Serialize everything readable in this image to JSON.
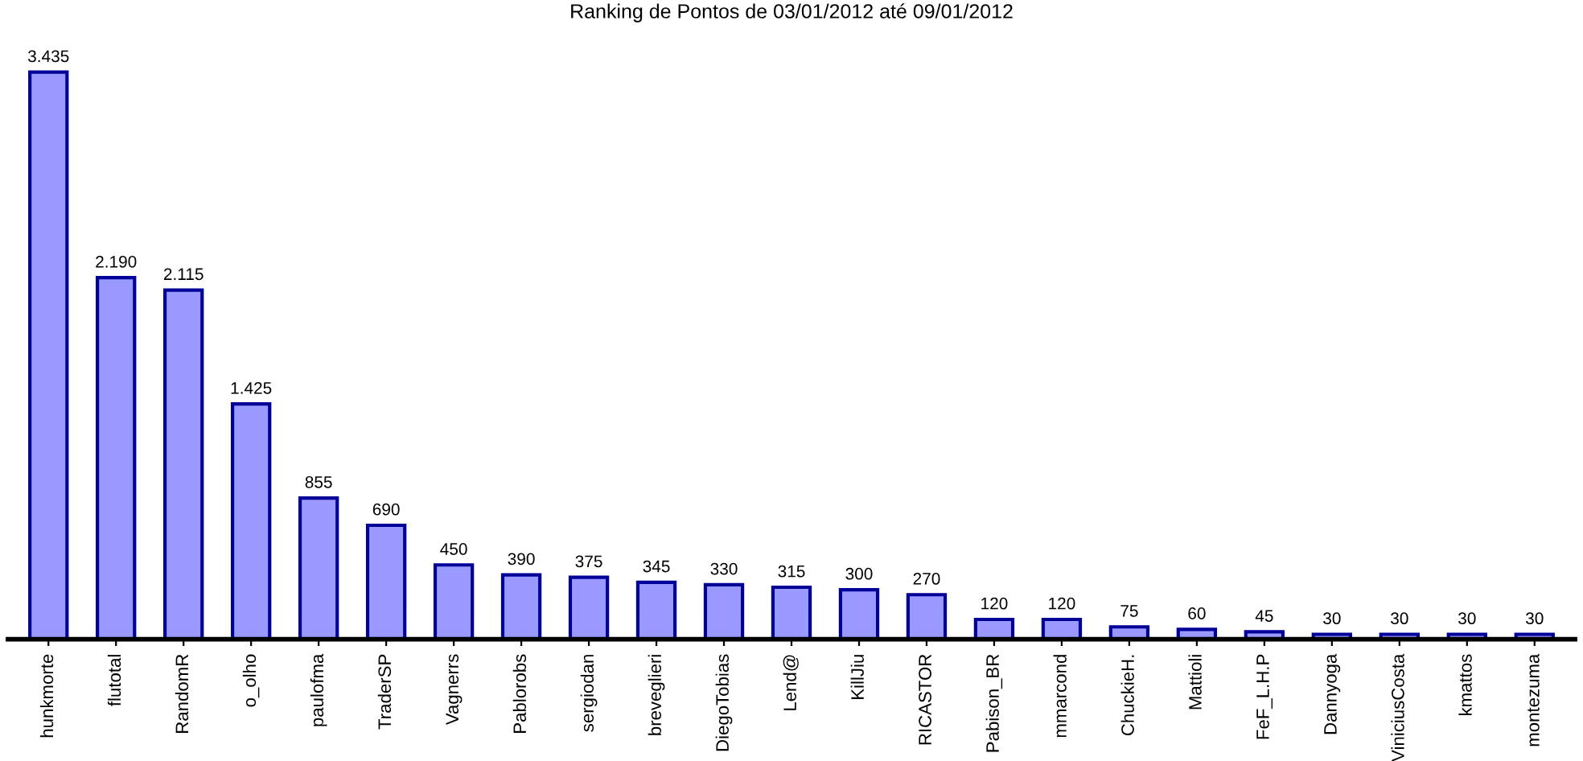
{
  "chart_data": {
    "type": "bar",
    "title": "Ranking de Pontos de 03/01/2012 até 09/01/2012",
    "categories": [
      "hunkmorte",
      "flutotal",
      "RandomR",
      "o_olho",
      "paulofma",
      "TraderSP",
      "Vagnerrs",
      "Pablorobs",
      "sergiodan",
      "breveglieri",
      "DiegoTobias",
      "Lend@",
      "KillJiu",
      "RICASTOR",
      "Pabison_BR",
      "mmarcond",
      "ChuckieH.",
      "Mattioli",
      "FeF_L.H.P",
      "Dannyoga",
      "ViniciusCosta",
      "kmattos",
      "montezuma"
    ],
    "values": [
      3435,
      2190,
      2115,
      1425,
      855,
      690,
      450,
      390,
      375,
      345,
      330,
      315,
      300,
      270,
      120,
      120,
      75,
      60,
      45,
      30,
      30,
      30,
      30
    ],
    "value_labels": [
      "3.435",
      "2.190",
      "2.115",
      "1.425",
      "855",
      "690",
      "450",
      "390",
      "375",
      "345",
      "330",
      "315",
      "300",
      "270",
      "120",
      "120",
      "75",
      "60",
      "45",
      "30",
      "30",
      "30",
      "30"
    ],
    "color": "#9999ff",
    "grid": false,
    "legend": false
  }
}
